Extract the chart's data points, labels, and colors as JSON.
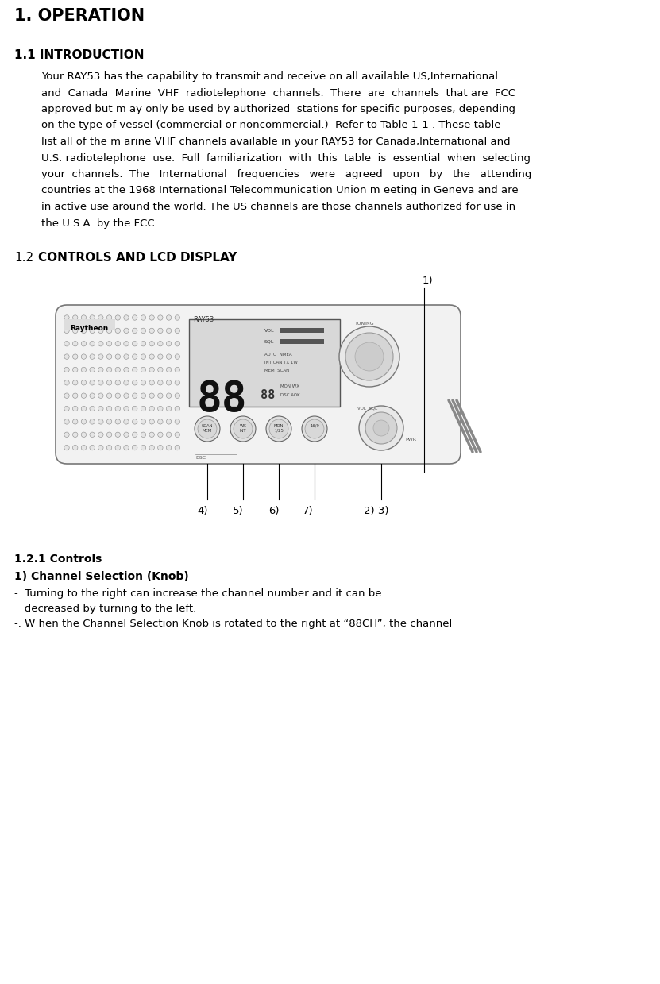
{
  "bg_color": "#ffffff",
  "title": "1. OPERATION",
  "section_1_1_header": "1.1 INTRODUCTION",
  "section_1_1_body": [
    "Your RAY53 has the capability to transmit and receive on all available US,International",
    "and  Canada  Marine  VHF  radiotelephone  channels.  There  are  channels  that are  FCC",
    "approved but m ay only be used by authorized  stations for specific purposes, depending",
    "on the type of vessel (commercial or noncommercial.)  Refer to Table 1-1 . These table",
    "list all of the m arine VHF channels available in your RAY53 for Canada,International and",
    "U.S. radiotelephone  use.  Full  familiarization  with  this  table  is  essential  when  selecting",
    "your  channels.  The   International   frequencies   were   agreed   upon   by   the   attending",
    "countries at the 1968 International Telecommunication Union m eeting in Geneva and are",
    "in active use around the world. The US channels are those channels authorized for use in",
    "the U.S.A. by the FCC."
  ],
  "section_1_2_prefix": "1.2",
  "section_1_2_bold": "CONTROLS AND LCD DISPLAY",
  "section_1_2_1_header": "1.2.1 Controls",
  "control_1_header": "1) Channel Selection (Knob)",
  "control_1_body": [
    "-. Turning to the right can increase the channel number and it can be",
    "   decreased by turning to the left.",
    "-. W hen the Channel Selection Knob is rotated to the right at “88CH”, the channel"
  ],
  "label_1": "1)",
  "label_2_3": "2) 3)",
  "label_4": "4)",
  "label_5": "5)",
  "label_6": "6)",
  "label_7": "7)"
}
